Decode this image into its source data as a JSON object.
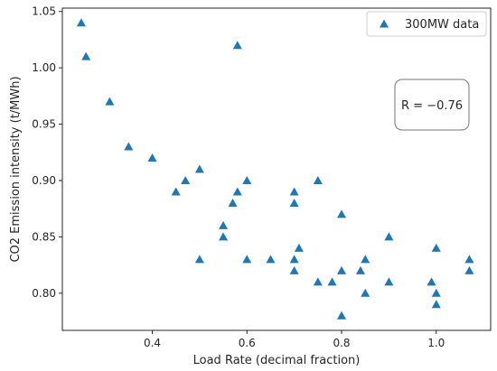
{
  "chart_data": {
    "type": "scatter",
    "xlabel": "Load Rate (decimal fraction)",
    "ylabel": "CO2 Emission intensity (t/MWh)",
    "xlim": [
      0.21,
      1.115
    ],
    "ylim": [
      0.767,
      1.053
    ],
    "xticks": [
      0.4,
      0.6,
      0.8,
      1.0
    ],
    "xtick_labels": [
      "0.4",
      "0.6",
      "0.8",
      "1.0"
    ],
    "yticks": [
      0.8,
      0.85,
      0.9,
      0.95,
      1.0,
      1.05
    ],
    "ytick_labels": [
      "0.80",
      "0.85",
      "0.90",
      "0.95",
      "1.00",
      "1.05"
    ],
    "grid": false,
    "legend_position": "top-right",
    "series": [
      {
        "name": "300MW data",
        "marker": "triangle",
        "color": "#1f77b4",
        "points": [
          [
            0.25,
            1.04
          ],
          [
            0.26,
            1.01
          ],
          [
            0.31,
            0.97
          ],
          [
            0.35,
            0.93
          ],
          [
            0.4,
            0.92
          ],
          [
            0.45,
            0.89
          ],
          [
            0.47,
            0.9
          ],
          [
            0.5,
            0.91
          ],
          [
            0.5,
            0.83
          ],
          [
            0.55,
            0.86
          ],
          [
            0.55,
            0.85
          ],
          [
            0.57,
            0.88
          ],
          [
            0.58,
            0.89
          ],
          [
            0.58,
            1.02
          ],
          [
            0.6,
            0.9
          ],
          [
            0.6,
            0.83
          ],
          [
            0.65,
            0.83
          ],
          [
            0.7,
            0.89
          ],
          [
            0.7,
            0.88
          ],
          [
            0.7,
            0.83
          ],
          [
            0.7,
            0.82
          ],
          [
            0.71,
            0.84
          ],
          [
            0.75,
            0.9
          ],
          [
            0.75,
            0.81
          ],
          [
            0.78,
            0.81
          ],
          [
            0.8,
            0.87
          ],
          [
            0.8,
            0.82
          ],
          [
            0.8,
            0.78
          ],
          [
            0.84,
            0.82
          ],
          [
            0.85,
            0.83
          ],
          [
            0.85,
            0.8
          ],
          [
            0.9,
            0.85
          ],
          [
            0.9,
            0.81
          ],
          [
            0.99,
            0.81
          ],
          [
            1.0,
            0.84
          ],
          [
            1.0,
            0.8
          ],
          [
            1.0,
            0.79
          ],
          [
            1.07,
            0.83
          ],
          [
            1.07,
            0.82
          ]
        ]
      }
    ],
    "annotation": {
      "text": "R = −0.76",
      "position": "right-upper"
    }
  }
}
